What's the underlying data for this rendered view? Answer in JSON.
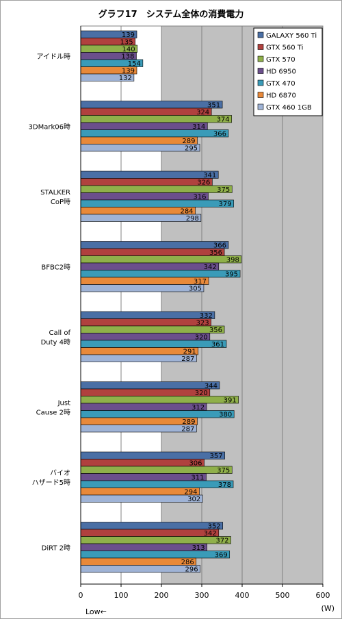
{
  "chart_data": {
    "type": "bar",
    "orientation": "horizontal",
    "title": "グラフ17　システム全体の消費電力",
    "unit_label": "(W)",
    "direction_note": "Low←",
    "xlim": [
      0,
      600
    ],
    "x_ticks": [
      "0",
      "100",
      "200",
      "300",
      "400",
      "500",
      "600"
    ],
    "x_tick_values": [
      0,
      100,
      200,
      300,
      400,
      500,
      600
    ],
    "grid": true,
    "legend_position": "top-right",
    "categories": [
      [
        "アイドル時"
      ],
      [
        "3DMark06時"
      ],
      [
        "STALKER",
        "CoP時"
      ],
      [
        "BFBC2時"
      ],
      [
        "Call of",
        "Duty 4時"
      ],
      [
        "Just",
        "Cause 2時"
      ],
      [
        "バイオ",
        "ハザード5時"
      ],
      [
        "DiRT 2時"
      ]
    ],
    "series": [
      {
        "name": "GALAXY 560 Ti",
        "color": "#4a6fa5",
        "values": [
          139,
          351,
          341,
          366,
          332,
          344,
          357,
          352
        ]
      },
      {
        "name": "GTX 560 Ti",
        "color": "#b0413e",
        "values": [
          135,
          324,
          326,
          356,
          323,
          320,
          306,
          342
        ]
      },
      {
        "name": "GTX 570",
        "color": "#8fb04a",
        "values": [
          140,
          374,
          375,
          398,
          356,
          391,
          375,
          372
        ]
      },
      {
        "name": "HD 6950",
        "color": "#6b4f8c",
        "values": [
          138,
          314,
          316,
          342,
          320,
          312,
          311,
          313
        ]
      },
      {
        "name": "GTX 470",
        "color": "#3a9bb8",
        "values": [
          154,
          366,
          379,
          395,
          361,
          380,
          378,
          369
        ]
      },
      {
        "name": "HD 6870",
        "color": "#e8893a",
        "values": [
          139,
          289,
          284,
          317,
          291,
          289,
          294,
          286
        ]
      },
      {
        "name": "GTX 460 1GB",
        "color": "#9fb3d6",
        "values": [
          132,
          295,
          298,
          305,
          287,
          287,
          302,
          296
        ]
      }
    ]
  },
  "colors": {
    "plot_background": "#c0c0c0",
    "gridline": "#808080",
    "axis": "#000000"
  }
}
